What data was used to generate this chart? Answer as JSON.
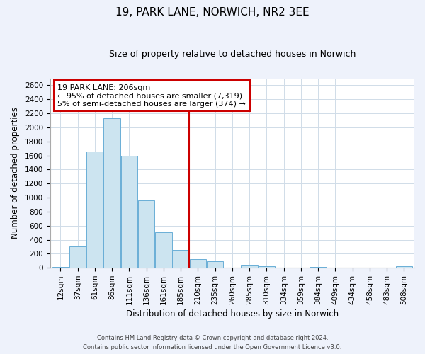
{
  "title": "19, PARK LANE, NORWICH, NR2 3EE",
  "subtitle": "Size of property relative to detached houses in Norwich",
  "xlabel": "Distribution of detached houses by size in Norwich",
  "ylabel": "Number of detached properties",
  "bin_labels": [
    "12sqm",
    "37sqm",
    "61sqm",
    "86sqm",
    "111sqm",
    "136sqm",
    "161sqm",
    "185sqm",
    "210sqm",
    "235sqm",
    "260sqm",
    "285sqm",
    "310sqm",
    "334sqm",
    "359sqm",
    "384sqm",
    "409sqm",
    "434sqm",
    "458sqm",
    "483sqm",
    "508sqm"
  ],
  "bar_heights": [
    10,
    300,
    1660,
    2130,
    1600,
    960,
    510,
    250,
    120,
    95,
    0,
    30,
    20,
    0,
    0,
    15,
    0,
    0,
    0,
    0,
    20
  ],
  "bar_color": "#cce4f0",
  "bar_edge_color": "#6aaed6",
  "vline_x": 7.5,
  "vline_color": "#cc0000",
  "annotation_text": "19 PARK LANE: 206sqm\n← 95% of detached houses are smaller (7,319)\n5% of semi-detached houses are larger (374) →",
  "annotation_box_color": "#ffffff",
  "annotation_box_edge": "#cc0000",
  "ylim": [
    0,
    2700
  ],
  "yticks": [
    0,
    200,
    400,
    600,
    800,
    1000,
    1200,
    1400,
    1600,
    1800,
    2000,
    2200,
    2400,
    2600
  ],
  "footnote1": "Contains HM Land Registry data © Crown copyright and database right 2024.",
  "footnote2": "Contains public sector information licensed under the Open Government Licence v3.0.",
  "bg_color": "#eef2fb",
  "plot_bg_color": "#ffffff",
  "grid_color": "#d0dce8",
  "title_fontsize": 11,
  "subtitle_fontsize": 9,
  "annotation_fontsize": 8,
  "axis_label_fontsize": 8.5,
  "tick_fontsize": 7.5
}
